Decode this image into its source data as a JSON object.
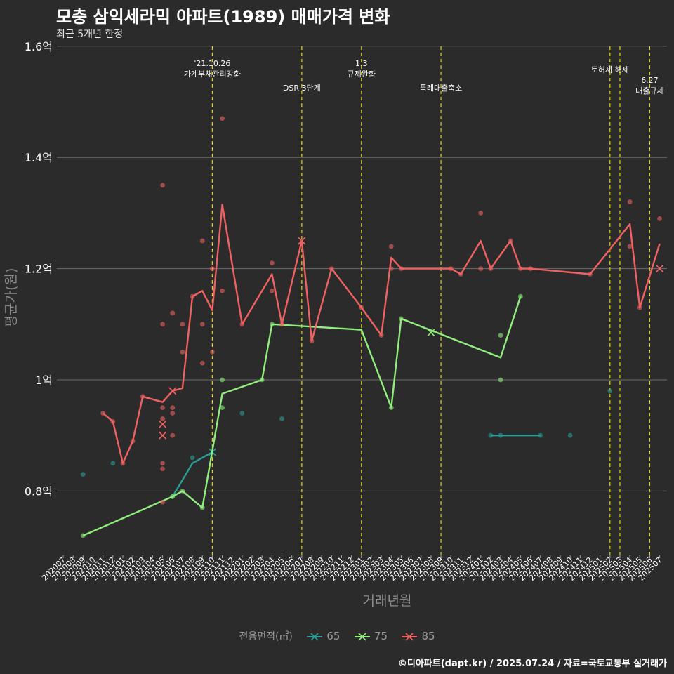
{
  "header": {
    "title": "모충 삼익세라믹 아파트(1989) 매매가격 변화",
    "subtitle": "최근 5개년 한정"
  },
  "footer": {
    "caption": "©디아파트(dapt.kr) / 2025.07.24 / 자료=국토교통부 실거래가"
  },
  "legend": {
    "title": "전용면적(㎡)",
    "items": [
      {
        "label": "65",
        "color": "#2a9d95"
      },
      {
        "label": "75",
        "color": "#90ee7c"
      },
      {
        "label": "85",
        "color": "#f06262"
      }
    ]
  },
  "chart_data": {
    "type": "line",
    "xlabel": "거래년월",
    "ylabel": "평균가(원)",
    "ylim": [
      0.7,
      1.6
    ],
    "y_ticks": [
      {
        "value": 0.8,
        "label": "0.8억"
      },
      {
        "value": 1.0,
        "label": "1억"
      },
      {
        "value": 1.2,
        "label": "1.2억"
      },
      {
        "value": 1.4,
        "label": "1.4억"
      },
      {
        "value": 1.6,
        "label": "1.6억"
      }
    ],
    "grid": true,
    "legend_position": "bottom",
    "x_categories": [
      "202007",
      "202008",
      "202009",
      "202010",
      "202011",
      "202012",
      "202101",
      "202102",
      "202103",
      "202104",
      "202105",
      "202106",
      "202107",
      "202108",
      "202109",
      "202110",
      "202111",
      "202112",
      "202201",
      "202202",
      "202203",
      "202204",
      "202205",
      "202206",
      "202207",
      "202208",
      "202209",
      "202210",
      "202211",
      "202212",
      "202301",
      "202302",
      "202303",
      "202304",
      "202305",
      "202306",
      "202307",
      "202308",
      "202309",
      "202310",
      "202311",
      "202312",
      "202401",
      "202402",
      "202403",
      "202404",
      "202405",
      "202406",
      "202407",
      "202408",
      "202409",
      "202410",
      "202411",
      "202412",
      "202501",
      "202502",
      "202503",
      "202504",
      "202505",
      "202506",
      "202507"
    ],
    "events": [
      {
        "x": "202110",
        "label_lines": [
          "'21.10.26",
          "가계부채관리강화"
        ],
        "level": 1
      },
      {
        "x": "202207",
        "label_lines": [
          "DSR 3단계"
        ],
        "level": 2
      },
      {
        "x": "202301",
        "label_lines": [
          "1.3",
          "규제완화"
        ],
        "level": 1
      },
      {
        "x": "202309",
        "label_lines": [
          "특례대출축소"
        ],
        "level": 2
      },
      {
        "x": "202502",
        "label_lines": [
          "토허제 해제"
        ],
        "level": 1
      },
      {
        "x": "202503",
        "label_lines": [],
        "level": 1
      },
      {
        "x": "202506",
        "label_lines": [
          "6.27",
          "대출규제"
        ],
        "level": 3
      }
    ],
    "series": [
      {
        "name": "65",
        "color": "#2a9d95",
        "line": [
          [
            "202106",
            0.79
          ],
          [
            "202108",
            0.85
          ],
          [
            "202110",
            0.87
          ]
        ],
        "line2": [
          [
            "202402",
            0.9
          ],
          [
            "202403",
            0.9
          ],
          [
            "202407",
            0.9
          ]
        ],
        "points": [
          [
            "202009",
            0.83
          ],
          [
            "202012",
            0.85
          ],
          [
            "202106",
            0.79
          ],
          [
            "202108",
            0.86
          ],
          [
            "202201",
            0.94
          ],
          [
            "202205",
            0.93
          ],
          [
            "202402",
            0.9
          ],
          [
            "202403",
            0.9
          ],
          [
            "202407",
            0.9
          ],
          [
            "202410",
            0.9
          ],
          [
            "202502",
            0.98
          ]
        ],
        "x_marks": [
          [
            "202110",
            0.87
          ]
        ]
      },
      {
        "name": "75",
        "color": "#90ee7c",
        "line": [
          [
            "202009",
            0.72
          ],
          [
            "202106",
            0.79
          ],
          [
            "202107",
            0.8
          ],
          [
            "202109",
            0.77
          ],
          [
            "202111",
            0.975
          ],
          [
            "202203",
            1.0
          ],
          [
            "202204",
            1.1
          ],
          [
            "202301",
            1.09
          ],
          [
            "202304",
            0.95
          ],
          [
            "202305",
            1.11
          ],
          [
            "202403",
            1.04
          ],
          [
            "202405",
            1.15
          ]
        ],
        "points": [
          [
            "202009",
            0.72
          ],
          [
            "202106",
            0.79
          ],
          [
            "202107",
            0.8
          ],
          [
            "202109",
            0.77
          ],
          [
            "202111",
            1.0
          ],
          [
            "202111",
            0.95
          ],
          [
            "202203",
            1.0
          ],
          [
            "202204",
            1.1
          ],
          [
            "202304",
            0.95
          ],
          [
            "202305",
            1.11
          ],
          [
            "202403",
            1.08
          ],
          [
            "202403",
            1.0
          ],
          [
            "202405",
            1.15
          ]
        ],
        "x_marks": [
          [
            "202308",
            1.085
          ]
        ]
      },
      {
        "name": "85",
        "color": "#f06262",
        "line": [
          [
            "202011",
            0.94
          ],
          [
            "202012",
            0.925
          ],
          [
            "202101",
            0.85
          ],
          [
            "202102",
            0.89
          ],
          [
            "202103",
            0.97
          ],
          [
            "202105",
            0.96
          ],
          [
            "202106",
            0.98
          ],
          [
            "202107",
            0.985
          ],
          [
            "202108",
            1.15
          ],
          [
            "202109",
            1.16
          ],
          [
            "202110",
            1.125
          ],
          [
            "202111",
            1.315
          ],
          [
            "202201",
            1.1
          ],
          [
            "202204",
            1.19
          ],
          [
            "202205",
            1.1
          ],
          [
            "202207",
            1.25
          ],
          [
            "202208",
            1.07
          ],
          [
            "202210",
            1.2
          ],
          [
            "202301",
            1.13
          ],
          [
            "202303",
            1.08
          ],
          [
            "202304",
            1.22
          ],
          [
            "202305",
            1.2
          ],
          [
            "202310",
            1.2
          ],
          [
            "202311",
            1.19
          ],
          [
            "202401",
            1.25
          ],
          [
            "202402",
            1.2
          ],
          [
            "202404",
            1.25
          ],
          [
            "202405",
            1.2
          ],
          [
            "202406",
            1.2
          ],
          [
            "202412",
            1.19
          ],
          [
            "202504",
            1.28
          ],
          [
            "202505",
            1.13
          ],
          [
            "202507",
            1.245
          ]
        ],
        "points": [
          [
            "202011",
            0.94
          ],
          [
            "202012",
            0.925
          ],
          [
            "202101",
            0.85
          ],
          [
            "202102",
            0.89
          ],
          [
            "202103",
            0.97
          ],
          [
            "202105",
            1.35
          ],
          [
            "202105",
            1.1
          ],
          [
            "202105",
            0.95
          ],
          [
            "202105",
            0.93
          ],
          [
            "202105",
            0.85
          ],
          [
            "202105",
            0.84
          ],
          [
            "202105",
            0.78
          ],
          [
            "202106",
            1.12
          ],
          [
            "202106",
            0.95
          ],
          [
            "202106",
            0.94
          ],
          [
            "202106",
            0.9
          ],
          [
            "202107",
            1.1
          ],
          [
            "202107",
            1.05
          ],
          [
            "202108",
            1.15
          ],
          [
            "202109",
            1.25
          ],
          [
            "202109",
            1.1
          ],
          [
            "202109",
            1.03
          ],
          [
            "202110",
            1.2
          ],
          [
            "202110",
            1.05
          ],
          [
            "202111",
            1.47
          ],
          [
            "202111",
            1.16
          ],
          [
            "202201",
            1.1
          ],
          [
            "202204",
            1.21
          ],
          [
            "202204",
            1.16
          ],
          [
            "202205",
            1.1
          ],
          [
            "202208",
            1.07
          ],
          [
            "202210",
            1.2
          ],
          [
            "202301",
            1.13
          ],
          [
            "202303",
            1.08
          ],
          [
            "202304",
            1.24
          ],
          [
            "202304",
            1.2
          ],
          [
            "202305",
            1.2
          ],
          [
            "202310",
            1.2
          ],
          [
            "202311",
            1.19
          ],
          [
            "202401",
            1.3
          ],
          [
            "202401",
            1.2
          ],
          [
            "202402",
            1.2
          ],
          [
            "202404",
            1.25
          ],
          [
            "202405",
            1.2
          ],
          [
            "202406",
            1.2
          ],
          [
            "202412",
            1.19
          ],
          [
            "202504",
            1.32
          ],
          [
            "202504",
            1.24
          ],
          [
            "202505",
            1.13
          ],
          [
            "202507",
            1.29
          ]
        ],
        "x_marks": [
          [
            "202105",
            0.92
          ],
          [
            "202105",
            0.9
          ],
          [
            "202106",
            0.98
          ],
          [
            "202207",
            1.25
          ],
          [
            "202507",
            1.2
          ]
        ]
      }
    ]
  }
}
